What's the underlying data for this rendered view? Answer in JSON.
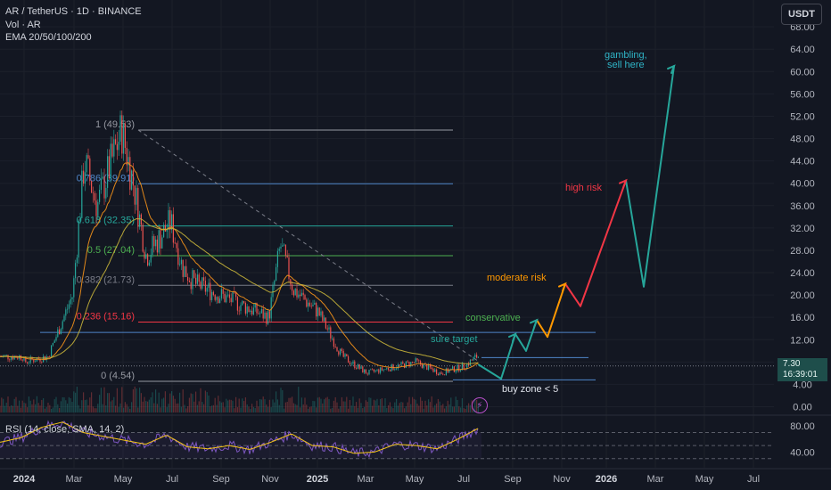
{
  "header": {
    "symbol": "AR / TetherUS · 1D · BINANCE",
    "volume": "Vol · AR",
    "ema": "EMA 20/50/100/200"
  },
  "currency_button": "USDT",
  "price_tag": {
    "price": "7.30",
    "countdown": "16:39:01"
  },
  "colors": {
    "background": "#131722",
    "candle_up": "#26a69a",
    "candle_down": "#ef5350",
    "ema_orange": "#f7931a",
    "ema_yellow": "#c9b53a",
    "rsi_line": "#7e57c2",
    "rsi_sma": "#f5c518",
    "arrow_teal": "#26a69a",
    "arrow_orange": "#ff9800",
    "arrow_red": "#f23645"
  },
  "chart_data": [
    {
      "type": "line",
      "title": "",
      "price_axis": {
        "ticks": [
          0.0,
          4.0,
          8.0,
          12.0,
          16.0,
          20.0,
          24.0,
          28.0,
          32.0,
          36.0,
          40.0,
          44.0,
          48.0,
          52.0,
          56.0,
          60.0,
          64.0,
          68.0
        ],
        "tick_labels": [
          "0.00",
          "4.00",
          "8.00",
          "12.00",
          "16.00",
          "20.00",
          "24.00",
          "28.00",
          "32.00",
          "36.00",
          "40.00",
          "44.00",
          "48.00",
          "52.00",
          "56.00",
          "60.00",
          "64.00",
          "68.00"
        ],
        "range": [
          0,
          70
        ]
      },
      "time_axis": {
        "labels": [
          "2024",
          "Mar",
          "May",
          "Jul",
          "Sep",
          "Nov",
          "2025",
          "Mar",
          "May",
          "Jul",
          "Sep",
          "Nov",
          "2026",
          "Mar",
          "May",
          "Jul"
        ],
        "bold": [
          "2024",
          "2025",
          "2026"
        ]
      },
      "price_series": {
        "name": "",
        "x": [
          "2024-01",
          "2024-02",
          "2024-03",
          "2024-03",
          "2024-04",
          "2024-05",
          "2024-05",
          "2024-06",
          "2024-07",
          "2024-07",
          "2024-08",
          "2024-09",
          "2024-10",
          "2024-11",
          "2024-11",
          "2024-12",
          "2025-01",
          "2025-02",
          "2025-03",
          "2025-04",
          "2025-05",
          "2025-06",
          "2025-07",
          "2025-07"
        ],
        "values": [
          8,
          9,
          20,
          44,
          36,
          49.5,
          40,
          27,
          33,
          25,
          22,
          20,
          18,
          16,
          29,
          21,
          17,
          9,
          6,
          7,
          8,
          6,
          7.3,
          9
        ]
      },
      "fibonacci": [
        {
          "level": "1 (49.53)",
          "value": 49.53,
          "color": "#9598a1"
        },
        {
          "level": "0.786 (39.91)",
          "value": 39.91,
          "color": "#4f86c9"
        },
        {
          "level": "0.618 (32.35)",
          "value": 32.35,
          "color": "#26a69a"
        },
        {
          "level": "0.5 (27.04)",
          "value": 27.04,
          "color": "#4caf50"
        },
        {
          "level": "0.382 (21.73)",
          "value": 21.73,
          "color": "#787b86"
        },
        {
          "level": "0.236 (15.16)",
          "value": 15.16,
          "color": "#f23645"
        },
        {
          "level": "0 (4.54)",
          "value": 4.54,
          "color": "#9598a1"
        }
      ],
      "horizontal_levels": [
        13.3,
        8.8,
        4.8
      ],
      "projection_path": {
        "points": [
          {
            "x": "2025-07",
            "y": 7.5
          },
          {
            "x": "2025-08",
            "y": 5
          },
          {
            "x": "2025-08",
            "y": 13
          },
          {
            "x": "2025-09",
            "y": 10
          },
          {
            "x": "2025-09",
            "y": 15.5
          },
          {
            "x": "2025-10",
            "y": 12.5
          },
          {
            "x": "2025-10",
            "y": 22
          },
          {
            "x": "2025-11",
            "y": 18
          },
          {
            "x": "2025-12",
            "y": 40.5
          },
          {
            "x": "2026-01",
            "y": 21.5
          },
          {
            "x": "2026-03",
            "y": 61
          }
        ]
      },
      "annotations": [
        {
          "text": "sure target",
          "color": "#26a69a"
        },
        {
          "text": "conservative",
          "color": "#4caf50"
        },
        {
          "text": "moderate risk",
          "color": "#ff9800"
        },
        {
          "text": "high risk",
          "color": "#f23645"
        },
        {
          "text": "gambling,",
          "color": "#2fb4c7"
        },
        {
          "text": "sell here",
          "color": "#2fb4c7"
        },
        {
          "text": "buy zone < 5",
          "color": "#e0e3eb"
        }
      ]
    },
    {
      "type": "line",
      "title": "RSI (14, close, SMA, 14, 2)",
      "y_ticks": [
        40.0,
        80.0
      ],
      "y_tick_labels": [
        "40.00",
        "80.00"
      ],
      "ylim": [
        20,
        90
      ],
      "series": [
        {
          "name": "RSI",
          "values": [
            55,
            62,
            78,
            86,
            70,
            64,
            58,
            52,
            66,
            48,
            45,
            50,
            44,
            55,
            68,
            50,
            48,
            38,
            40,
            52,
            50,
            45,
            60,
            77
          ]
        }
      ],
      "bands": [
        70,
        50,
        30
      ]
    }
  ]
}
